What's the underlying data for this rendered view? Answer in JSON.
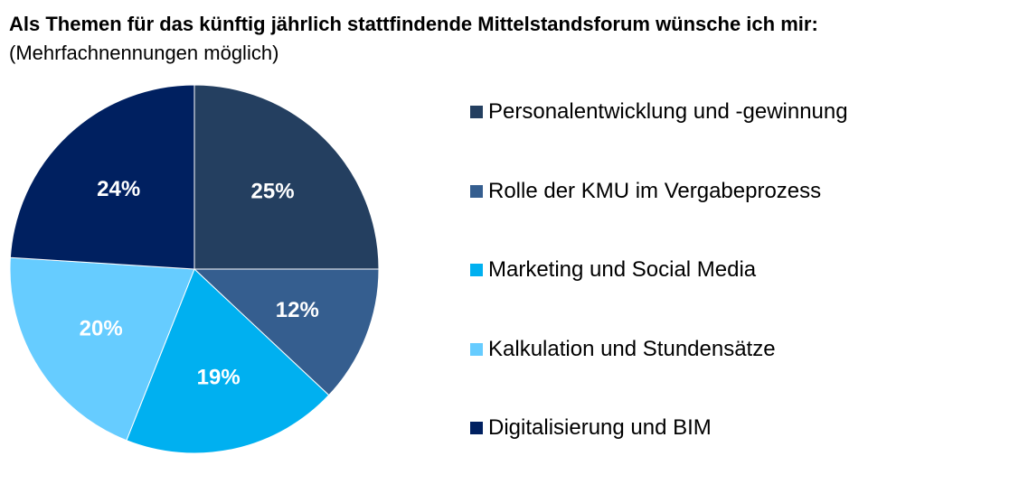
{
  "chart_data": {
    "type": "pie",
    "title": "Als Themen für das künftig jährlich stattfindende Mittelstandsforum wünsche ich mir:",
    "subtitle": "(Mehrfachnennungen möglich)",
    "legend_position": "right",
    "slices": [
      {
        "label": "Personalentwicklung und -gewinnung",
        "value": 25,
        "display": "25%",
        "color": "#243f60"
      },
      {
        "label": "Rolle der KMU im Vergabeprozess",
        "value": 12,
        "display": "12%",
        "color": "#355e8f"
      },
      {
        "label": "Marketing und Social Media",
        "value": 19,
        "display": "19%",
        "color": "#00b0f0"
      },
      {
        "label": "Kalkulation und Stundensätze",
        "value": 20,
        "display": "20%",
        "color": "#66ccff"
      },
      {
        "label": "Digitalisierung und BIM",
        "value": 24,
        "display": "24%",
        "color": "#002060"
      }
    ]
  }
}
